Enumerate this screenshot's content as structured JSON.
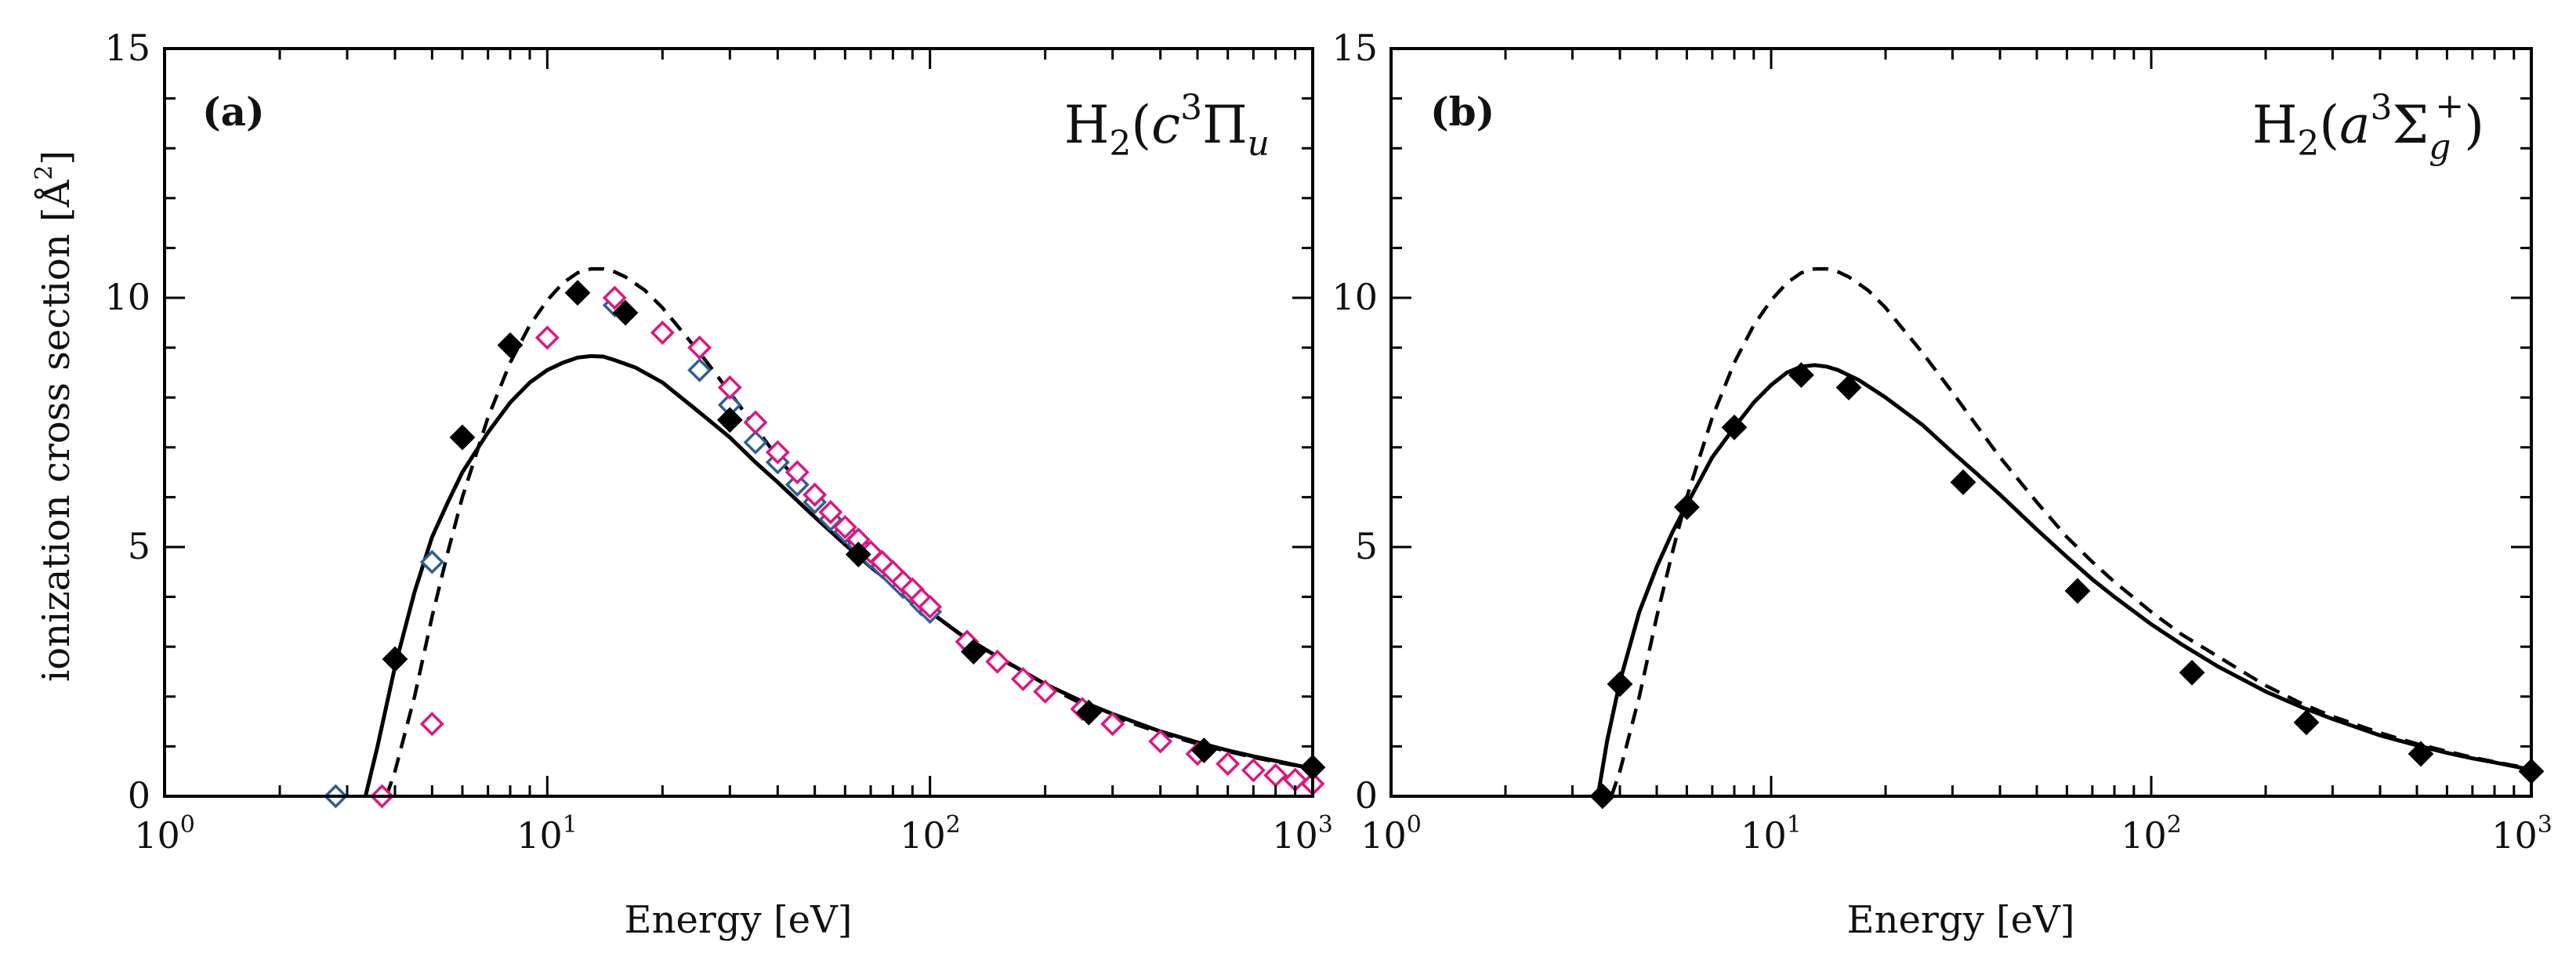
{
  "chart_data": [
    {
      "type": "scatter",
      "panel": "(a)",
      "title": "H2(c3Πu)",
      "title_parts": {
        "base": "H",
        "base_sub": "2",
        "open": "(",
        "c": "c",
        "c_sup": "3",
        "pi": "Π",
        "pi_sub": "u"
      },
      "xlabel": "Energy [eV]",
      "ylabel": "ionization cross section [Å2]",
      "ylabel_parts": {
        "text": "ionization cross section [Å",
        "sup": "2",
        "close": "]"
      },
      "xscale": "log",
      "xlim": [
        1,
        1000
      ],
      "ylim": [
        0,
        15
      ],
      "yticks": [
        "0",
        "5",
        "10",
        "15"
      ],
      "xticks": [
        {
          "base": "10",
          "exp": "0"
        },
        {
          "base": "10",
          "exp": "1"
        },
        {
          "base": "10",
          "exp": "2"
        },
        {
          "base": "10",
          "exp": "3"
        }
      ],
      "series": [
        {
          "name": "solid curve",
          "style": "solid",
          "x": [
            3.35,
            3.6,
            4,
            4.5,
            5,
            5.5,
            6,
            7,
            8,
            9,
            10,
            11,
            12,
            13,
            14,
            15,
            17,
            20,
            25,
            30,
            35,
            40,
            50,
            60,
            70,
            80,
            100,
            120,
            150,
            200,
            250,
            300,
            400,
            500,
            600,
            700,
            800,
            1000
          ],
          "y": [
            0,
            1.0,
            2.6,
            4.1,
            5.2,
            5.9,
            6.5,
            7.3,
            7.9,
            8.3,
            8.55,
            8.7,
            8.8,
            8.83,
            8.82,
            8.75,
            8.6,
            8.3,
            7.7,
            7.2,
            6.7,
            6.3,
            5.6,
            5.05,
            4.6,
            4.25,
            3.7,
            3.25,
            2.8,
            2.25,
            1.9,
            1.65,
            1.3,
            1.08,
            0.92,
            0.8,
            0.71,
            0.55
          ]
        },
        {
          "name": "dashed curve",
          "style": "dashed",
          "x": [
            3.8,
            4,
            4.5,
            5,
            5.5,
            6,
            7,
            8,
            9,
            10,
            11,
            12,
            13,
            14,
            15,
            16,
            18,
            20,
            25,
            30,
            35,
            40,
            50,
            60,
            70,
            80,
            100,
            120,
            150,
            200,
            250,
            300,
            400,
            500,
            600,
            700,
            800,
            1000
          ],
          "y": [
            0,
            0.5,
            2.0,
            3.6,
            4.9,
            6.0,
            7.6,
            8.7,
            9.45,
            9.95,
            10.3,
            10.5,
            10.58,
            10.58,
            10.52,
            10.42,
            10.15,
            9.8,
            8.9,
            8.1,
            7.4,
            6.8,
            5.9,
            5.2,
            4.7,
            4.3,
            3.7,
            3.25,
            2.8,
            2.22,
            1.85,
            1.6,
            1.27,
            1.05,
            0.9,
            0.78,
            0.69,
            0.55
          ]
        },
        {
          "name": "filled diamonds",
          "marker": "diamond-filled",
          "color": "#000000",
          "x": [
            4,
            6,
            8,
            12,
            16,
            30,
            65,
            130,
            260,
            520,
            1000
          ],
          "y": [
            2.75,
            7.2,
            9.05,
            10.1,
            9.7,
            7.55,
            4.85,
            2.9,
            1.68,
            0.92,
            0.58
          ]
        },
        {
          "name": "blue open diamonds",
          "marker": "diamond-open",
          "color": "#2d5f96",
          "x": [
            2.8,
            5,
            15,
            25,
            30,
            35,
            40,
            45,
            50,
            55,
            60,
            65,
            70,
            75,
            80,
            85,
            90,
            95,
            100
          ],
          "y": [
            0,
            4.7,
            9.85,
            8.55,
            7.85,
            7.1,
            6.7,
            6.25,
            5.9,
            5.55,
            5.3,
            5.05,
            4.8,
            4.6,
            4.4,
            4.2,
            4.05,
            3.85,
            3.7
          ]
        },
        {
          "name": "pink open diamonds",
          "marker": "diamond-open",
          "color": "#e0157f",
          "x": [
            3.7,
            5,
            10,
            15,
            20,
            25,
            30,
            35,
            40,
            45,
            50,
            55,
            60,
            65,
            70,
            75,
            80,
            85,
            90,
            95,
            100,
            125,
            150,
            175,
            200,
            250,
            300,
            400,
            500,
            600,
            700,
            800,
            900,
            1000
          ],
          "y": [
            0,
            1.45,
            9.2,
            10.0,
            9.3,
            9.0,
            8.2,
            7.5,
            6.9,
            6.5,
            6.05,
            5.7,
            5.4,
            5.15,
            4.9,
            4.7,
            4.5,
            4.3,
            4.15,
            3.95,
            3.8,
            3.1,
            2.7,
            2.35,
            2.1,
            1.75,
            1.45,
            1.1,
            0.85,
            0.65,
            0.52,
            0.42,
            0.33,
            0.25
          ]
        }
      ]
    },
    {
      "type": "scatter",
      "panel": "(b)",
      "title": "H2(a3Σg+)",
      "title_parts": {
        "base": "H",
        "base_sub": "2",
        "open": "(",
        "a": "a",
        "a_sup": "3",
        "sigma": "Σ",
        "sigma_sub": "g",
        "sigma_sup": "+",
        "close": ")"
      },
      "xlabel": "Energy [eV]",
      "xscale": "log",
      "xlim": [
        1,
        1000
      ],
      "ylim": [
        0,
        15
      ],
      "yticks": [
        "0",
        "5",
        "10",
        "15"
      ],
      "xticks": [
        {
          "base": "10",
          "exp": "0"
        },
        {
          "base": "10",
          "exp": "1"
        },
        {
          "base": "10",
          "exp": "2"
        },
        {
          "base": "10",
          "exp": "3"
        }
      ],
      "series": [
        {
          "name": "solid curve",
          "style": "solid",
          "x": [
            3.5,
            3.7,
            4,
            4.5,
            5,
            5.5,
            6,
            7,
            8,
            9,
            10,
            11,
            12,
            13,
            14,
            15,
            17,
            20,
            25,
            30,
            35,
            40,
            50,
            60,
            70,
            80,
            100,
            120,
            150,
            200,
            250,
            300,
            400,
            500,
            600,
            700,
            800,
            1000
          ],
          "y": [
            0,
            1.1,
            2.3,
            3.7,
            4.6,
            5.3,
            5.85,
            6.8,
            7.4,
            7.9,
            8.25,
            8.5,
            8.62,
            8.65,
            8.62,
            8.55,
            8.35,
            8.0,
            7.45,
            6.9,
            6.45,
            6.05,
            5.35,
            4.8,
            4.35,
            4.0,
            3.45,
            3.05,
            2.6,
            2.1,
            1.78,
            1.55,
            1.22,
            1.02,
            0.87,
            0.76,
            0.68,
            0.53
          ]
        },
        {
          "name": "dashed curve",
          "style": "dashed",
          "x": [
            3.8,
            4,
            4.5,
            5,
            5.5,
            6,
            7,
            8,
            9,
            10,
            11,
            12,
            13,
            14,
            15,
            16,
            18,
            20,
            25,
            30,
            35,
            40,
            50,
            60,
            70,
            80,
            100,
            120,
            150,
            200,
            250,
            300,
            400,
            500,
            600,
            700,
            800,
            1000
          ],
          "y": [
            0,
            0.5,
            2.0,
            3.6,
            4.9,
            6.0,
            7.6,
            8.7,
            9.45,
            9.95,
            10.3,
            10.5,
            10.58,
            10.58,
            10.52,
            10.42,
            10.15,
            9.8,
            8.9,
            8.1,
            7.4,
            6.8,
            5.9,
            5.2,
            4.7,
            4.3,
            3.7,
            3.25,
            2.8,
            2.22,
            1.85,
            1.6,
            1.27,
            1.05,
            0.9,
            0.78,
            0.69,
            0.55
          ]
        },
        {
          "name": "filled diamonds",
          "marker": "diamond-filled",
          "color": "#000000",
          "x": [
            3.6,
            4,
            6,
            8,
            12,
            16,
            32,
            64,
            128,
            256,
            512,
            1000
          ],
          "y": [
            0,
            2.25,
            5.8,
            7.4,
            8.45,
            8.2,
            6.3,
            4.12,
            2.48,
            1.48,
            0.85,
            0.5
          ]
        }
      ]
    }
  ]
}
